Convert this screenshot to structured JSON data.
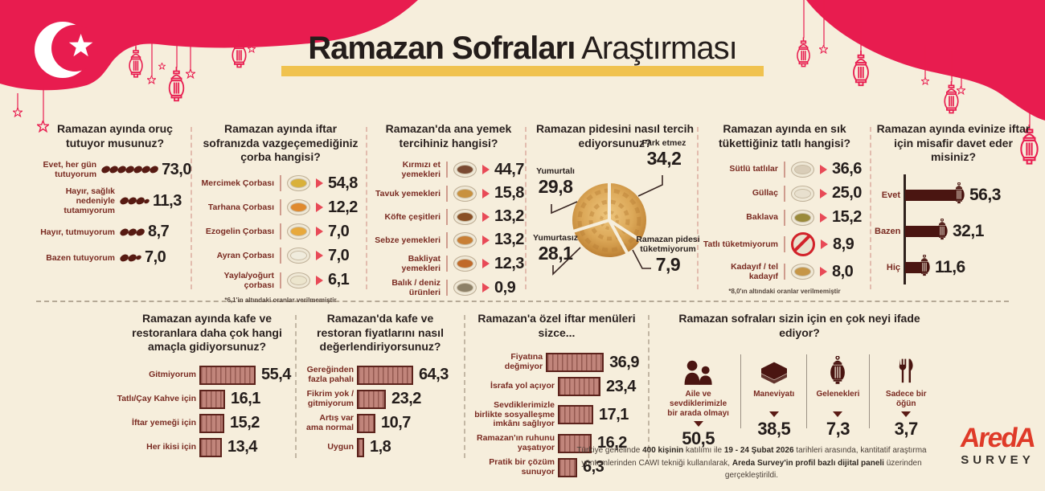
{
  "title": {
    "bold": "Ramazan Sofraları",
    "regular": " Araştırması"
  },
  "colors": {
    "crimson": "#e81c4f",
    "maroon": "#7a2b22",
    "dark": "#241d1b",
    "cream": "#f6eedc",
    "gold": "#f0c24f",
    "bar_fill": "#c1857b",
    "bar_border": "#5c231c",
    "arrow_red": "#e84a57",
    "dark_bar": "#4a1511",
    "logo_red": "#df3a28"
  },
  "panels": {
    "fasting": {
      "question": "Ramazan ayında oruç tutuyor musunuz?",
      "rows": [
        {
          "label": "Evet, her gün tutuyorum",
          "value": "73,0",
          "dates": 7
        },
        {
          "label": "Hayır, sağlık nedeniyle tutamıyorum",
          "value": "11,3",
          "dates": 3.5
        },
        {
          "label": "Hayır, tutmuyorum",
          "value": "8,7",
          "dates": 3
        },
        {
          "label": "Bazen tutuyorum",
          "value": "7,0",
          "dates": 2.5
        }
      ]
    },
    "soup": {
      "question": "Ramazan ayında iftar sofranızda vazgeçemediğiniz çorba hangisi?",
      "rows": [
        {
          "label": "Mercimek Çorbası",
          "value": "54,8",
          "icon": "lentil-soup-icon",
          "icon_color": "#d9b13b"
        },
        {
          "label": "Tarhana Çorbası",
          "value": "12,2",
          "icon": "tarhana-soup-icon",
          "icon_color": "#e08a2e"
        },
        {
          "label": "Ezogelin Çorbası",
          "value": "7,0",
          "icon": "ezogelin-soup-icon",
          "icon_color": "#e8a93c"
        },
        {
          "label": "Ayran Çorbası",
          "value": "7,0",
          "icon": "ayran-soup-icon",
          "icon_color": "#f0ecdd"
        },
        {
          "label": "Yayla/yoğurt çorbası",
          "value": "6,1",
          "icon": "yayla-soup-icon",
          "icon_color": "#ece5cd"
        }
      ],
      "footnote": "*6,1'in altındaki oranlar verilmemiştir"
    },
    "main_dish": {
      "question": "Ramazan'da ana yemek tercihiniz hangisi?",
      "rows": [
        {
          "label": "Kırmızı et yemekleri",
          "value": "44,7",
          "icon": "red-meat-icon",
          "icon_color": "#7a4a32"
        },
        {
          "label": "Tavuk yemekleri",
          "value": "15,8",
          "icon": "chicken-icon",
          "icon_color": "#c8913f"
        },
        {
          "label": "Köfte çeşitleri",
          "value": "13,2",
          "icon": "meatball-icon",
          "icon_color": "#8a5026"
        },
        {
          "label": "Sebze yemekleri",
          "value": "13,2",
          "icon": "vegetable-icon",
          "icon_color": "#c87f35"
        },
        {
          "label": "Bakliyat yemekleri",
          "value": "12,3",
          "icon": "legume-icon",
          "icon_color": "#c06a2a"
        },
        {
          "label": "Balık / deniz ürünleri",
          "value": "0,9",
          "icon": "fish-icon",
          "icon_color": "#8d8168"
        }
      ]
    },
    "pide": {
      "question": "Ramazan pidesini nasıl tercih ediyorsunuz?",
      "slices": [
        {
          "label": "Yumurtalı",
          "value": "29,8"
        },
        {
          "label": "Fark etmez",
          "value": "34,2"
        },
        {
          "label": "Yumurtasız",
          "value": "28,1"
        },
        {
          "label": "Ramazan pidesi tüketmiyorum",
          "value": "7,9"
        }
      ]
    },
    "dessert": {
      "question": "Ramazan ayında en sık tükettiğiniz tatlı hangisi?",
      "rows": [
        {
          "label": "Sütlü tatlılar",
          "value": "36,6",
          "icon": "milk-dessert-icon",
          "icon_color": "#d9cdb8"
        },
        {
          "label": "Güllaç",
          "value": "25,0",
          "icon": "gullac-icon",
          "icon_color": "#e8e0ce"
        },
        {
          "label": "Baklava",
          "value": "15,2",
          "icon": "baklava-icon",
          "icon_color": "#9a8a3a"
        },
        {
          "label": "Tatlı tüketmiyorum",
          "value": "8,9",
          "icon": "no-dessert-icon",
          "icon_color": ""
        },
        {
          "label": "Kadayıf / tel kadayıf",
          "value": "8,0",
          "icon": "kadayif-icon",
          "icon_color": "#c69647"
        }
      ],
      "footnote": "*8,0'ın altındaki oranlar verilmemiştir"
    },
    "guests": {
      "question": "Ramazan ayında evinize iftar için misafir davet eder misiniz?",
      "rows": [
        {
          "label": "Evet",
          "value": "56,3"
        },
        {
          "label": "Bazen",
          "value": "32,1"
        },
        {
          "label": "Hiç",
          "value": "11,6"
        }
      ]
    }
  },
  "bottom": {
    "cafe_purpose": {
      "question": "Ramazan ayında kafe ve restoranlara daha çok hangi amaçla gidiyorsunuz?",
      "rows": [
        {
          "label": "Gitmiyorum",
          "value": "55,4"
        },
        {
          "label": "Tatlı/Çay Kahve için",
          "value": "16,1"
        },
        {
          "label": "İftar yemeği için",
          "value": "15,2"
        },
        {
          "label": "Her ikisi için",
          "value": "13,4"
        }
      ]
    },
    "cafe_prices": {
      "question": "Ramazan'da kafe ve restoran fiyatlarını nasıl değerlendiriyorsunuz?",
      "rows": [
        {
          "label": "Gereğinden fazla pahalı",
          "value": "64,3"
        },
        {
          "label": "Fikrim yok / gitmiyorum",
          "value": "23,2"
        },
        {
          "label": "Artış var ama normal",
          "value": "10,7"
        },
        {
          "label": "Uygun",
          "value": "1,8"
        }
      ]
    },
    "iftar_menus": {
      "question": "Ramazan'a özel iftar menüleri sizce...",
      "rows": [
        {
          "label": "Fiyatına değmiyor",
          "value": "36,9"
        },
        {
          "label": "İsrafa yol açıyor",
          "value": "23,4"
        },
        {
          "label": "Sevdiklerimizle birlikte sosyalleşme imkânı sağlıyor",
          "value": "17,1"
        },
        {
          "label": "Ramazan'ın ruhunu yaşatıyor",
          "value": "16,2"
        },
        {
          "label": "Pratik bir çözüm sunuyor",
          "value": "6,3"
        }
      ]
    },
    "meaning": {
      "question": "Ramazan sofraları sizin için en çok neyi ifade ediyor?",
      "items": [
        {
          "label": "Aile ve sevdiklerimizle bir arada olmayı",
          "value": "50,5",
          "icon": "family-icon"
        },
        {
          "label": "Maneviyatı",
          "value": "38,5",
          "icon": "quran-icon"
        },
        {
          "label": "Gelenekleri",
          "value": "7,3",
          "icon": "lantern-icon"
        },
        {
          "label": "Sadece bir öğün",
          "value": "3,7",
          "icon": "cutlery-icon"
        }
      ]
    }
  },
  "footer": {
    "parts": [
      {
        "text": "Türkiye genelinde ",
        "bold": false
      },
      {
        "text": "400 kişinin",
        "bold": true
      },
      {
        "text": " katılımı ile ",
        "bold": false
      },
      {
        "text": "19 - 24 Şubat 2026",
        "bold": true
      },
      {
        "text": " tarihleri arasında, kantitatif araştırma yöntemlerinden CAWI tekniği kullanılarak, ",
        "bold": false
      },
      {
        "text": "Areda Survey'in profil bazlı dijital paneli",
        "bold": true
      },
      {
        "text": " üzerinden gerçekleştirildi.",
        "bold": false
      }
    ]
  },
  "logo": {
    "brand": "AredA",
    "sub": "SURVEY"
  },
  "chart_data": [
    {
      "type": "pictogram",
      "title": "Ramazan ayında oruç tutuyor musunuz?",
      "categories": [
        "Evet, her gün tutuyorum",
        "Hayır, sağlık nedeniyle tutamıyorum",
        "Hayır, tutmuyorum",
        "Bazen tutuyorum"
      ],
      "values": [
        73.0,
        11.3,
        8.7,
        7.0
      ]
    },
    {
      "type": "table",
      "title": "Ramazan ayında iftar sofranızda vazgeçemediğiniz çorba hangisi?",
      "categories": [
        "Mercimek Çorbası",
        "Tarhana Çorbası",
        "Ezogelin Çorbası",
        "Ayran Çorbası",
        "Yayla/yoğurt çorbası"
      ],
      "values": [
        54.8,
        12.2,
        7.0,
        7.0,
        6.1
      ],
      "note": "*6,1'in altındaki oranlar verilmemiştir"
    },
    {
      "type": "table",
      "title": "Ramazan'da ana yemek tercihiniz hangisi?",
      "categories": [
        "Kırmızı et yemekleri",
        "Tavuk yemekleri",
        "Köfte çeşitleri",
        "Sebze yemekleri",
        "Bakliyat yemekleri",
        "Balık / deniz ürünleri"
      ],
      "values": [
        44.7,
        15.8,
        13.2,
        13.2,
        12.3,
        0.9
      ]
    },
    {
      "type": "pie",
      "title": "Ramazan pidesini nasıl tercih ediyorsunuz?",
      "categories": [
        "Fark etmez",
        "Ramazan pidesi tüketmiyorum",
        "Yumurtasız",
        "Yumurtalı"
      ],
      "values": [
        34.2,
        7.9,
        28.1,
        29.8
      ]
    },
    {
      "type": "table",
      "title": "Ramazan ayında en sık tükettiğiniz tatlı hangisi?",
      "categories": [
        "Sütlü tatlılar",
        "Güllaç",
        "Baklava",
        "Tatlı tüketmiyorum",
        "Kadayıf / tel kadayıf"
      ],
      "values": [
        36.6,
        25.0,
        15.2,
        8.9,
        8.0
      ],
      "note": "*8,0'ın altındaki oranlar verilmemiştir"
    },
    {
      "type": "bar",
      "title": "Ramazan ayında evinize iftar için misafir davet eder misiniz?",
      "categories": [
        "Evet",
        "Bazen",
        "Hiç"
      ],
      "values": [
        56.3,
        32.1,
        11.6
      ]
    },
    {
      "type": "bar",
      "title": "Ramazan ayında kafe ve restoranlara daha çok hangi amaçla gidiyorsunuz?",
      "categories": [
        "Gitmiyorum",
        "Tatlı/Çay Kahve için",
        "İftar yemeği için",
        "Her ikisi için"
      ],
      "values": [
        55.4,
        16.1,
        15.2,
        13.4
      ]
    },
    {
      "type": "bar",
      "title": "Ramazan'da kafe ve restoran fiyatlarını nasıl değerlendiriyorsunuz?",
      "categories": [
        "Gereğinden fazla pahalı",
        "Fikrim yok / gitmiyorum",
        "Artış var ama normal",
        "Uygun"
      ],
      "values": [
        64.3,
        23.2,
        10.7,
        1.8
      ]
    },
    {
      "type": "bar",
      "title": "Ramazan'a özel iftar menüleri sizce...",
      "categories": [
        "Fiyatına değmiyor",
        "İsrafa yol açıyor",
        "Sevdiklerimizle birlikte sosyalleşme imkânı sağlıyor",
        "Ramazan'ın ruhunu yaşatıyor",
        "Pratik bir çözüm sunuyor"
      ],
      "values": [
        36.9,
        23.4,
        17.1,
        16.2,
        6.3
      ]
    },
    {
      "type": "pictogram",
      "title": "Ramazan sofraları sizin için en çok neyi ifade ediyor?",
      "categories": [
        "Aile ve sevdiklerimizle bir arada olmayı",
        "Maneviyatı",
        "Gelenekleri",
        "Sadece bir öğün"
      ],
      "values": [
        50.5,
        38.5,
        7.3,
        3.7
      ]
    }
  ]
}
